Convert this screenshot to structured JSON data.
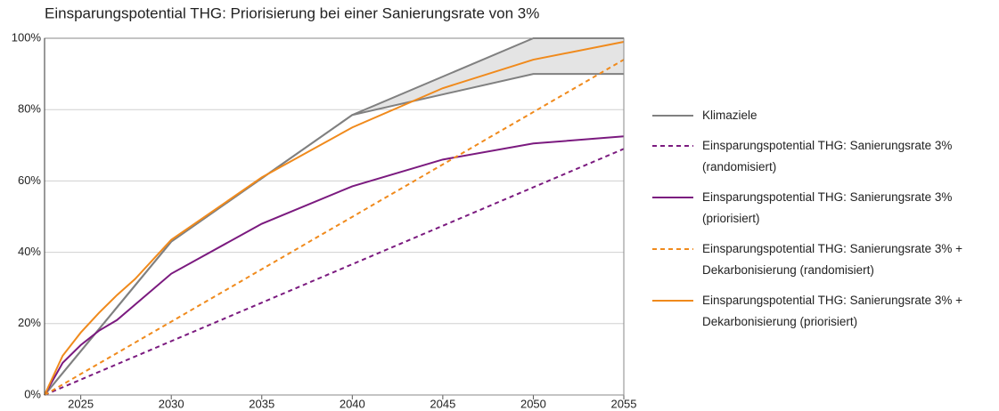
{
  "chart_data": {
    "type": "line",
    "title": "Einsparungspotential THG: Priorisierung bei einer Sanierungsrate von 3%",
    "xlim": [
      2023,
      2055
    ],
    "xticks": [
      2025,
      2030,
      2035,
      2040,
      2045,
      2050,
      2055
    ],
    "ylim": [
      0,
      100
    ],
    "yticks": [
      {
        "value": 0,
        "label": "0%"
      },
      {
        "value": 20,
        "label": "20%"
      },
      {
        "value": 40,
        "label": "40%"
      },
      {
        "value": 60,
        "label": "60%"
      },
      {
        "value": 80,
        "label": "80%"
      },
      {
        "value": 100,
        "label": "100%"
      }
    ],
    "grid": true,
    "legend": "right",
    "series": [
      {
        "name": "Klimaziele",
        "color": "#808080",
        "dash": false,
        "band_color": "#e4e4e4",
        "x": [
          2023,
          2030,
          2040,
          2050,
          2055
        ],
        "values": [
          0,
          43,
          78.5,
          90,
          90
        ],
        "upper": [
          0,
          43,
          78.5,
          100,
          100
        ]
      },
      {
        "name": "Einsparungspotential THG: Sanierungsrate 3% (randomisiert)",
        "color": "#7b1a7f",
        "dash": true,
        "x": [
          2023,
          2055
        ],
        "values": [
          0,
          69
        ]
      },
      {
        "name": "Einsparungspotential THG: Sanierungsrate 3% (priorisiert)",
        "color": "#7b1a7f",
        "dash": false,
        "x": [
          2023,
          2024,
          2025,
          2026,
          2027,
          2030,
          2035,
          2040,
          2045,
          2050,
          2055
        ],
        "values": [
          0,
          9,
          14,
          18,
          21,
          34,
          48,
          58.5,
          66,
          70.5,
          72.5
        ]
      },
      {
        "name": "Einsparungspotential THG: Sanierungsrate 3% + Dekarbonisierung (randomisiert)",
        "color": "#f08a1c",
        "dash": true,
        "x": [
          2023,
          2055
        ],
        "values": [
          0,
          94
        ]
      },
      {
        "name": "Einsparungspotential THG: Sanierungsrate 3% + Dekarbonisierung (priorisiert)",
        "color": "#f08a1c",
        "dash": false,
        "x": [
          2023,
          2024,
          2025,
          2026,
          2027,
          2028,
          2030,
          2035,
          2040,
          2045,
          2050,
          2055
        ],
        "values": [
          0,
          11,
          17.5,
          23,
          28,
          32.5,
          43.5,
          61,
          75,
          86,
          94,
          99
        ]
      }
    ]
  }
}
